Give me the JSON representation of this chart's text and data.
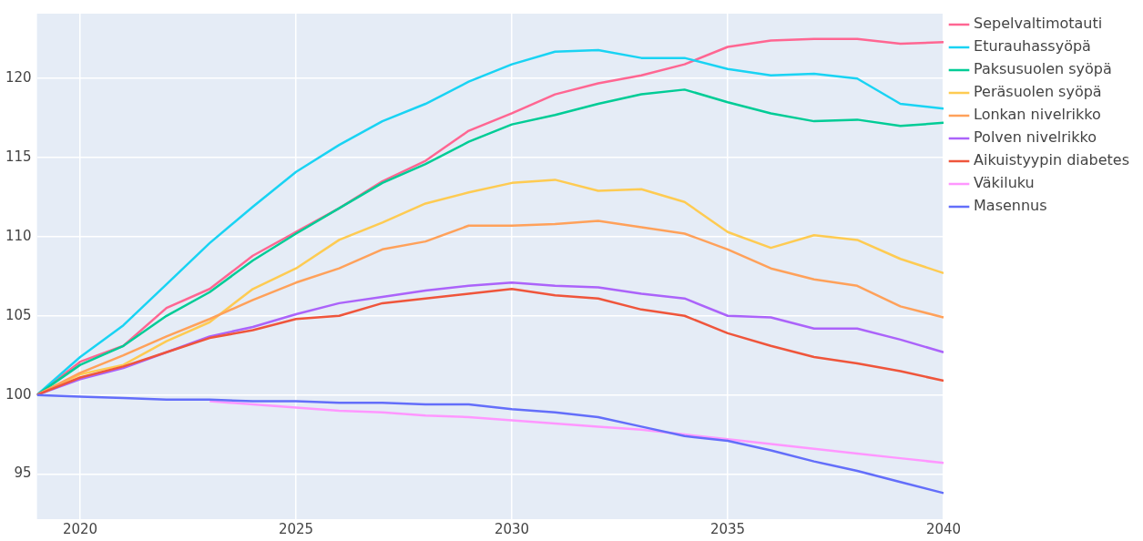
{
  "chart_data": {
    "type": "line",
    "x": [
      2019,
      2020,
      2021,
      2022,
      2023,
      2024,
      2025,
      2026,
      2027,
      2028,
      2029,
      2030,
      2031,
      2032,
      2033,
      2034,
      2035,
      2036,
      2037,
      2038,
      2039,
      2040
    ],
    "xlim": [
      2019,
      2040
    ],
    "xticks": [
      2020,
      2025,
      2030,
      2035,
      2040
    ],
    "ylim": [
      92.15,
      124.1
    ],
    "yticks": [
      95,
      100,
      105,
      110,
      115,
      120
    ],
    "grid": true,
    "legend": "top right",
    "marker": "none",
    "line_style": "solid",
    "series": [
      {
        "name": "Sepelvaltimotauti",
        "color": "#ff6692",
        "values": [
          100,
          102.1,
          103.1,
          105.5,
          106.7,
          108.8,
          110.3,
          111.8,
          113.5,
          114.8,
          116.7,
          117.8,
          119.0,
          119.7,
          120.2,
          120.9,
          122.0,
          122.4,
          122.5,
          122.5,
          122.2,
          122.3
        ]
      },
      {
        "name": "Eturauhassyöpä",
        "color": "#19d3f3",
        "values": [
          100,
          102.4,
          104.4,
          107.0,
          109.6,
          111.9,
          114.1,
          115.8,
          117.3,
          118.4,
          119.8,
          120.9,
          121.7,
          121.8,
          121.3,
          121.3,
          120.6,
          120.2,
          120.3,
          120.0,
          118.4,
          118.1
        ]
      },
      {
        "name": "Paksusuolen syöpä",
        "color": "#00cc96",
        "values": [
          100,
          101.9,
          103.1,
          105.0,
          106.5,
          108.5,
          110.2,
          111.8,
          113.4,
          114.6,
          116.0,
          117.1,
          117.7,
          118.4,
          119.0,
          119.3,
          118.5,
          117.8,
          117.3,
          117.4,
          117.0,
          117.2
        ]
      },
      {
        "name": "Peräsuolen syöpä",
        "color": "#fecb52",
        "values": [
          100,
          101.3,
          101.9,
          103.4,
          104.6,
          106.7,
          108.0,
          109.8,
          110.9,
          112.1,
          112.8,
          113.4,
          113.6,
          112.9,
          113.0,
          112.2,
          110.3,
          109.3,
          110.1,
          109.8,
          108.6,
          107.7
        ]
      },
      {
        "name": "Lonkan nivelrikko",
        "color": "#ffa15a",
        "values": [
          100,
          101.4,
          102.5,
          103.7,
          104.8,
          106.0,
          107.1,
          108.0,
          109.2,
          109.7,
          110.7,
          110.7,
          110.8,
          111.0,
          110.6,
          110.2,
          109.2,
          108.0,
          107.3,
          106.9,
          105.6,
          104.9
        ]
      },
      {
        "name": "Polven nivelrikko",
        "color": "#ab63fa",
        "values": [
          100,
          101.0,
          101.7,
          102.7,
          103.7,
          104.3,
          105.1,
          105.8,
          106.2,
          106.6,
          106.9,
          107.1,
          106.9,
          106.8,
          106.4,
          106.1,
          105.0,
          104.9,
          104.2,
          104.2,
          103.5,
          102.7
        ]
      },
      {
        "name": "Aikuistyypin diabetes",
        "color": "#ef553b",
        "values": [
          100,
          101.1,
          101.8,
          102.7,
          103.6,
          104.1,
          104.8,
          105.0,
          105.8,
          106.1,
          106.4,
          106.7,
          106.3,
          106.1,
          105.4,
          105.0,
          103.9,
          103.1,
          102.4,
          102.0,
          101.5,
          100.9
        ]
      },
      {
        "name": "Väkiluku",
        "color": "#ff97ff",
        "values": [
          null,
          null,
          null,
          null,
          99.6,
          99.4,
          99.2,
          99.0,
          98.9,
          98.7,
          98.6,
          98.4,
          98.2,
          98.0,
          97.8,
          97.5,
          97.2,
          96.9,
          96.6,
          96.3,
          96.0,
          95.7
        ]
      },
      {
        "name": "Masennus",
        "color": "#636efa",
        "values": [
          100,
          99.9,
          99.8,
          99.7,
          99.7,
          99.6,
          99.6,
          99.5,
          99.5,
          99.4,
          99.4,
          99.1,
          98.9,
          98.6,
          98.0,
          97.4,
          97.1,
          96.5,
          95.8,
          95.2,
          94.5,
          93.8
        ]
      }
    ]
  }
}
